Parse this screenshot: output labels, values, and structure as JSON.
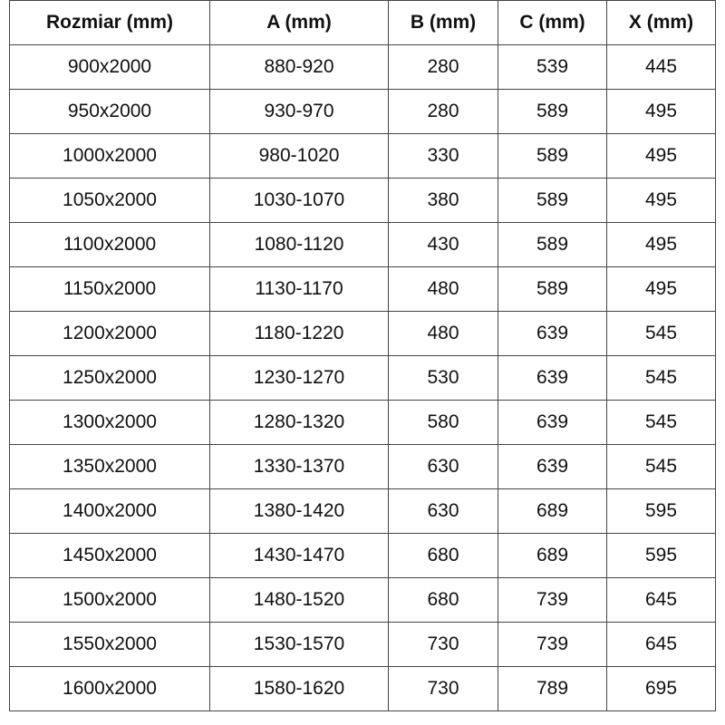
{
  "headers": [
    "Rozmiar (mm)",
    "A (mm)",
    "B (mm)",
    "C (mm)",
    "X (mm)"
  ],
  "rows": [
    [
      "900x2000",
      "880-920",
      "280",
      "539",
      "445"
    ],
    [
      "950x2000",
      "930-970",
      "280",
      "589",
      "495"
    ],
    [
      "1000x2000",
      "980-1020",
      "330",
      "589",
      "495"
    ],
    [
      "1050x2000",
      "1030-1070",
      "380",
      "589",
      "495"
    ],
    [
      "1100x2000",
      "1080-1120",
      "430",
      "589",
      "495"
    ],
    [
      "1150x2000",
      "1130-1170",
      "480",
      "589",
      "495"
    ],
    [
      "1200x2000",
      "1180-1220",
      "480",
      "639",
      "545"
    ],
    [
      "1250x2000",
      "1230-1270",
      "530",
      "639",
      "545"
    ],
    [
      "1300x2000",
      "1280-1320",
      "580",
      "639",
      "545"
    ],
    [
      "1350x2000",
      "1330-1370",
      "630",
      "639",
      "545"
    ],
    [
      "1400x2000",
      "1380-1420",
      "630",
      "689",
      "595"
    ],
    [
      "1450x2000",
      "1430-1470",
      "680",
      "689",
      "595"
    ],
    [
      "1500x2000",
      "1480-1520",
      "680",
      "739",
      "645"
    ],
    [
      "1550x2000",
      "1530-1570",
      "730",
      "739",
      "645"
    ],
    [
      "1600x2000",
      "1580-1620",
      "730",
      "789",
      "695"
    ]
  ]
}
